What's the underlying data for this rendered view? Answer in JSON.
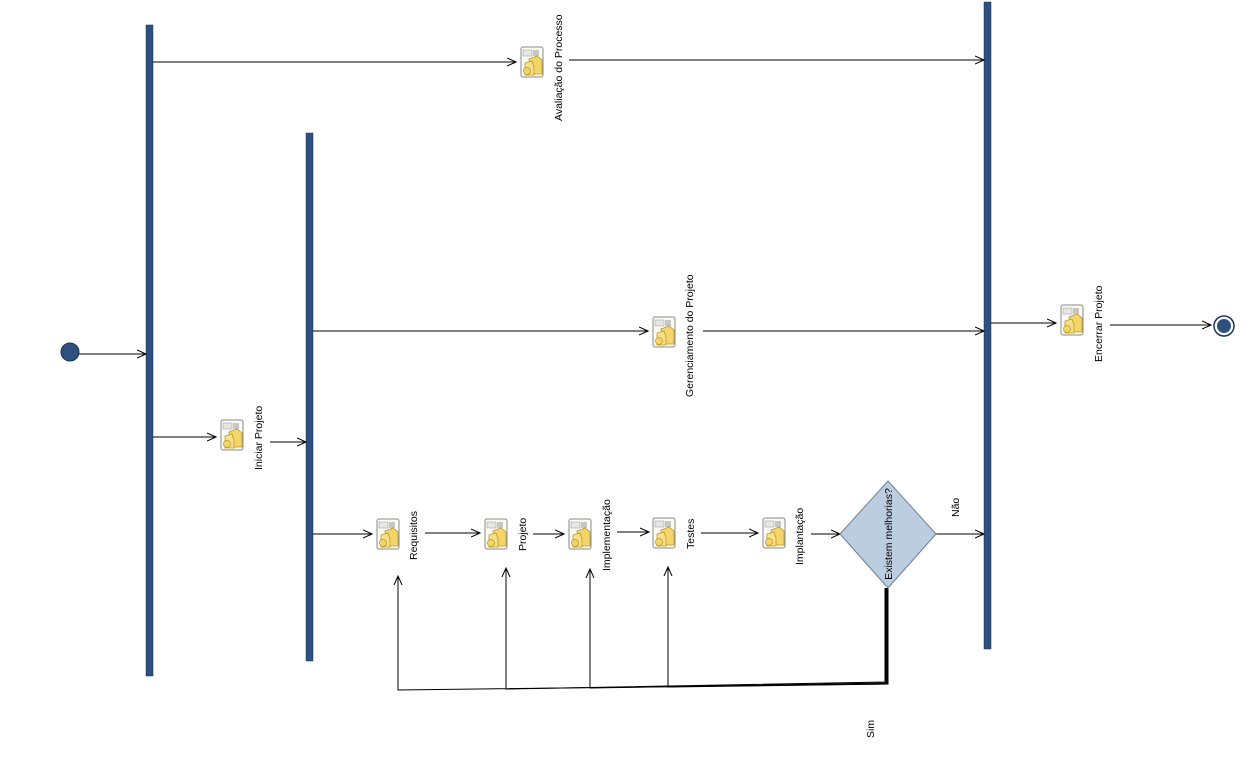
{
  "diagram": {
    "type": "uml-activity",
    "colors": {
      "fork_bar": "#2f4f7f",
      "start_node": "#2f4f7f",
      "decision_fill": "#bccde0",
      "activity_icon": "#f5d46a"
    },
    "activities": {
      "avaliacao": "Avaliação do Processo",
      "gerenciamento": "Gerenciamento do Projeto",
      "iniciar": "Iniciar Projeto",
      "requisitos": "Requisitos",
      "projeto": "Projeto",
      "implementacao": "Implementação",
      "testes": "Testes",
      "implantacao": "Implantação",
      "encerrar": "Encerrar Projeto"
    },
    "decision": {
      "question": "Existem melhorias?",
      "yes": "Sim",
      "no": "Não"
    }
  }
}
